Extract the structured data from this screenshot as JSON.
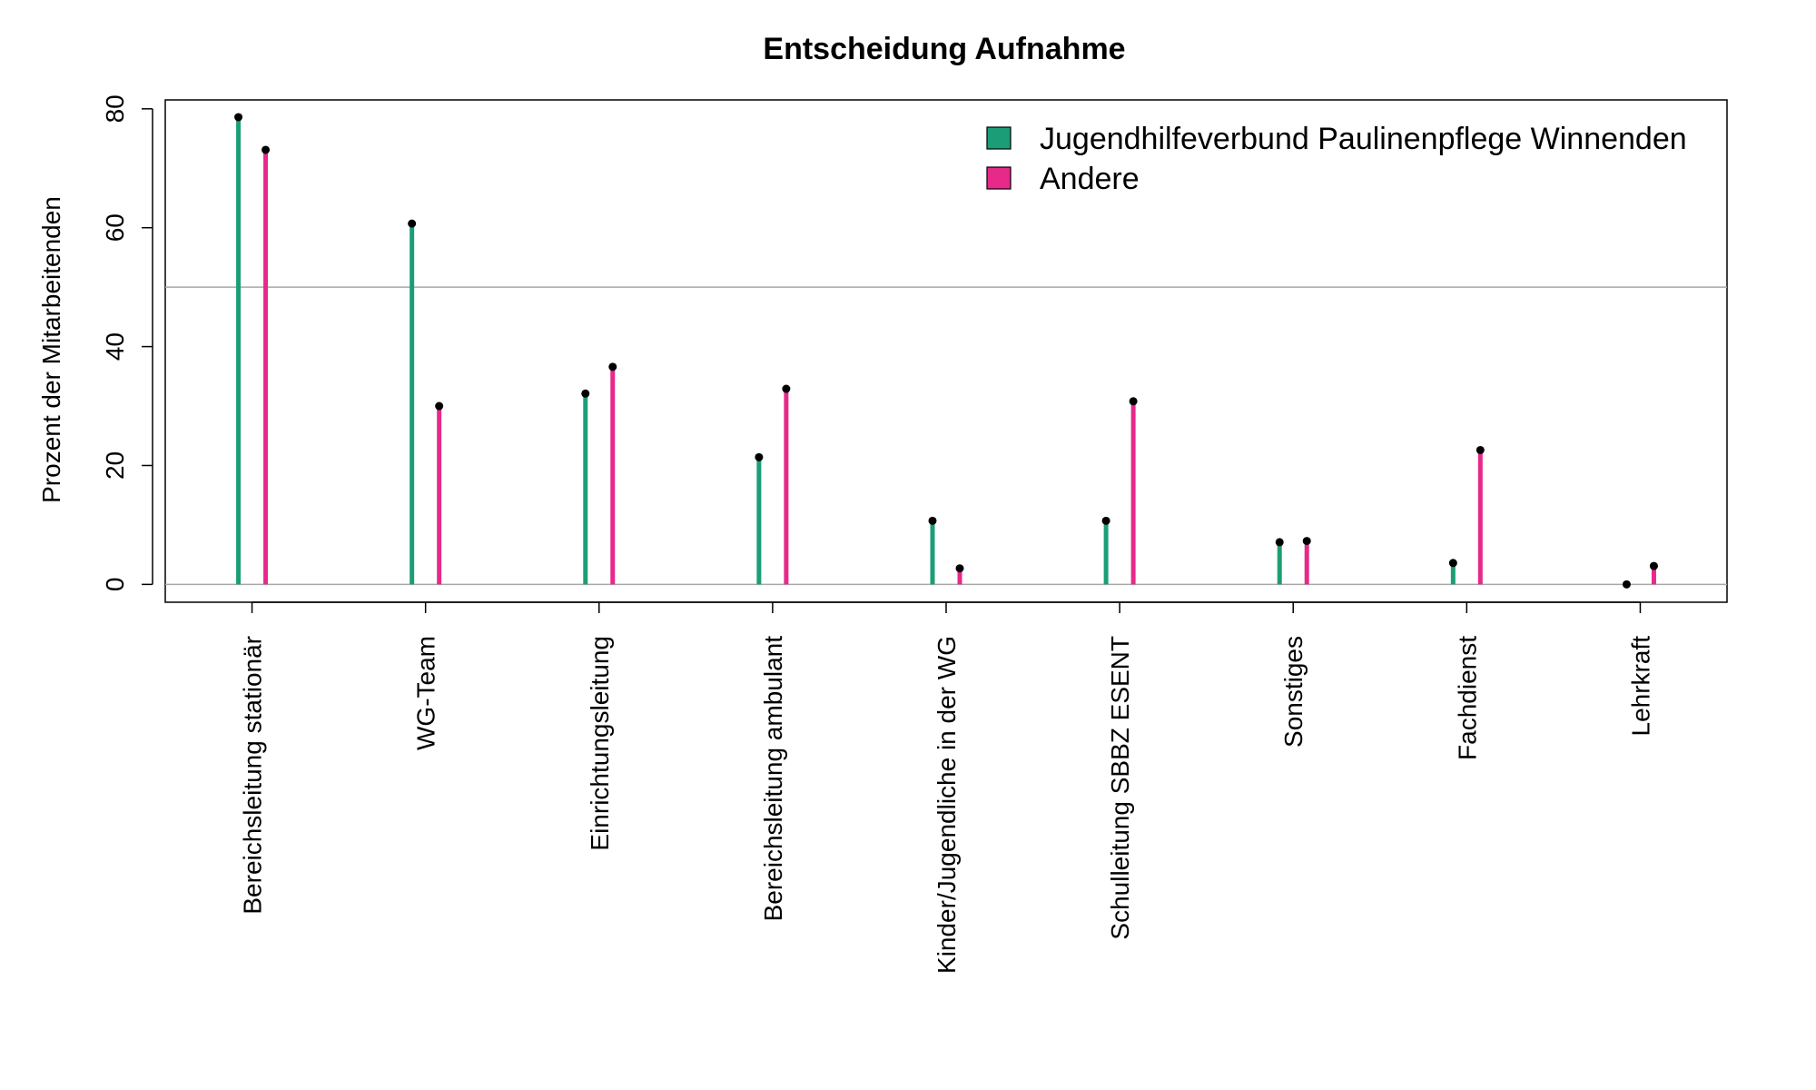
{
  "chart_data": {
    "type": "bar",
    "title": "Entscheidung Aufnahme",
    "xlabel": "",
    "ylabel": "Prozent der Mitarbeitenden",
    "ylim": [
      -3,
      81.5
    ],
    "yticks": [
      0,
      20,
      40,
      60,
      80
    ],
    "reference_lines": [
      0,
      50
    ],
    "grid": false,
    "legend_position": "top-right",
    "categories": [
      "Bereichsleitung stationär",
      "WG-Team",
      "Einrichtungsleitung",
      "Bereichsleitung ambulant",
      "Kinder/Jugendliche in der WG",
      "Schulleitung SBBZ ESENT",
      "Sonstiges",
      "Fachdienst",
      "Lehrkraft"
    ],
    "series": [
      {
        "name": "Jugendhilfeverbund Paulinenpflege Winnenden",
        "color": "#1b9e77",
        "values": [
          78.6,
          60.7,
          32.1,
          21.4,
          10.7,
          10.7,
          7.1,
          3.6,
          0
        ]
      },
      {
        "name": "Andere",
        "color": "#e7298a",
        "values": [
          73.1,
          30.0,
          36.6,
          32.9,
          2.7,
          30.8,
          7.3,
          22.6,
          3.1
        ]
      }
    ]
  }
}
